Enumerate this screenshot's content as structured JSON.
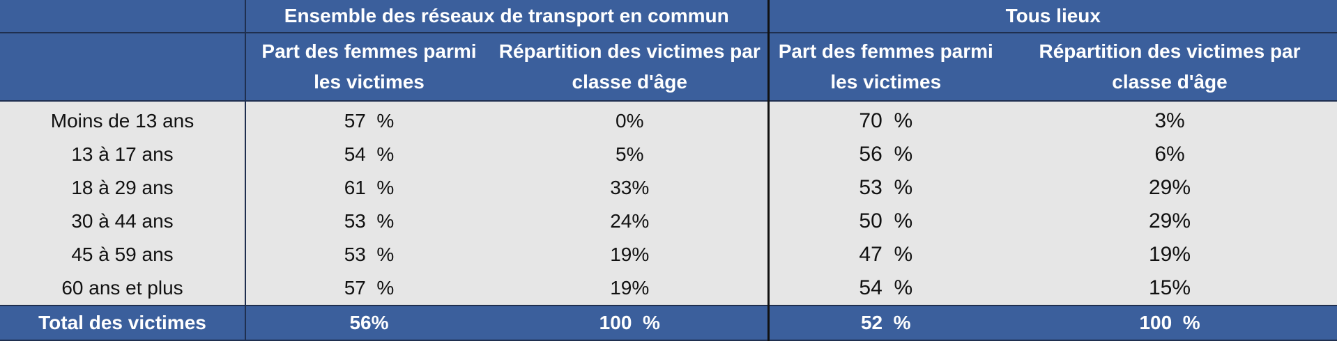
{
  "chart_data": {
    "type": "table",
    "header": {
      "group_transport": "Ensemble des réseaux de transport en commun",
      "group_all": "Tous lieux",
      "col_share_line1": "Part des femmes parmi",
      "col_share_line2": "les victimes",
      "col_dist_line1": "Répartition des victimes par",
      "col_dist_line2": "classe d'âge"
    },
    "rows": [
      {
        "age": "Moins de 13 ans",
        "t_share": "57  %",
        "t_dist": "0%",
        "a_share": "70  %",
        "a_dist": "3%"
      },
      {
        "age": "13 à 17 ans",
        "t_share": "54  %",
        "t_dist": "5%",
        "a_share": "56  %",
        "a_dist": "6%"
      },
      {
        "age": "18 à 29 ans",
        "t_share": "61  %",
        "t_dist": "33%",
        "a_share": "53  %",
        "a_dist": "29%"
      },
      {
        "age": "30 à 44 ans",
        "t_share": "53  %",
        "t_dist": "24%",
        "a_share": "50  %",
        "a_dist": "29%"
      },
      {
        "age": "45 à 59 ans",
        "t_share": "53  %",
        "t_dist": "19%",
        "a_share": "47  %",
        "a_dist": "19%"
      },
      {
        "age": "60 ans et plus",
        "t_share": "57  %",
        "t_dist": "19%",
        "a_share": "54  %",
        "a_dist": "15%"
      }
    ],
    "total": {
      "label": "Total des victimes",
      "t_share": "56%",
      "t_dist": "100  %",
      "a_share": "52  %",
      "a_dist": "100  %"
    }
  },
  "colors": {
    "header_bg": "#3b5f9c",
    "header_text": "#ffffff",
    "body_bg": "#e6e6e6",
    "body_text": "#111111"
  }
}
